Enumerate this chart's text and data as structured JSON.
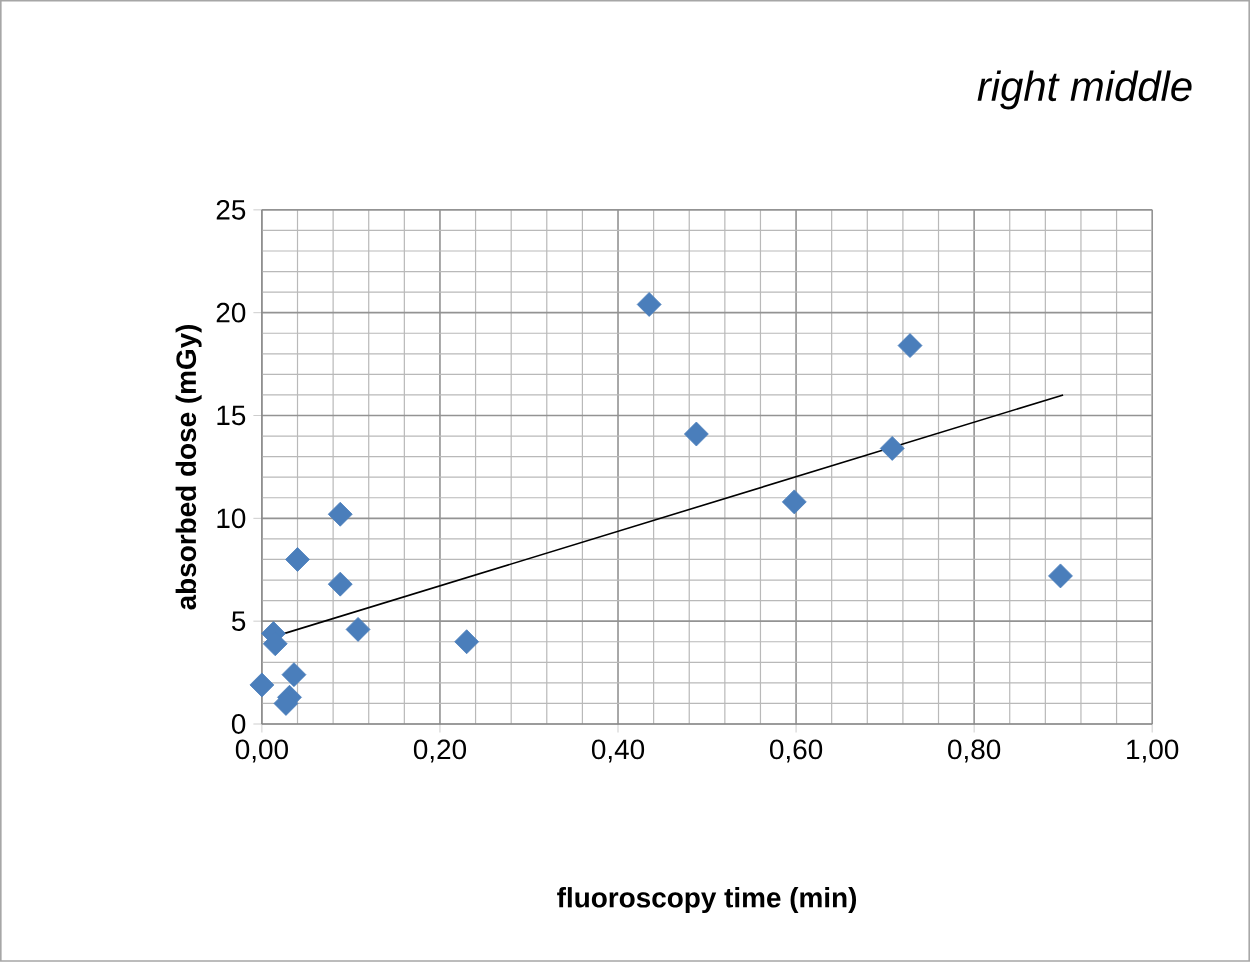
{
  "chart_data": {
    "type": "scatter",
    "title": "*right middle*",
    "xlabel": "fluoroscopy time (min)",
    "ylabel": "absorbed dose (mGy)",
    "xlim": [
      0,
      1
    ],
    "ylim": [
      0,
      25
    ],
    "xticks": [
      {
        "value": 0,
        "label": "0,00"
      },
      {
        "value": 0.2,
        "label": "0,20"
      },
      {
        "value": 0.4,
        "label": "0,40"
      },
      {
        "value": 0.6,
        "label": "0,60"
      },
      {
        "value": 0.8,
        "label": "0,80"
      },
      {
        "value": 1,
        "label": "1,00"
      }
    ],
    "yticks": [
      0,
      5,
      10,
      15,
      20,
      25
    ],
    "grid": true,
    "marker": "diamond",
    "series": [
      {
        "color": "#4a7ebb",
        "x": [
          0.0,
          0.013,
          0.015,
          0.036,
          0.031,
          0.027,
          0.04,
          0.088,
          0.088,
          0.108,
          0.23,
          0.435,
          0.488,
          0.598,
          0.708,
          0.728,
          0.897
        ],
        "values": [
          1.9,
          4.4,
          3.9,
          2.4,
          1.3,
          1.0,
          8.0,
          10.2,
          6.8,
          4.6,
          4.0,
          20.4,
          14.1,
          10.8,
          13.4,
          18.4,
          7.2
        ]
      },
      {
        "type": "line",
        "marker": "none",
        "color": "#000000",
        "x": [
          0.01,
          0.9
        ],
        "values": [
          4.2,
          16.0
        ]
      }
    ]
  }
}
